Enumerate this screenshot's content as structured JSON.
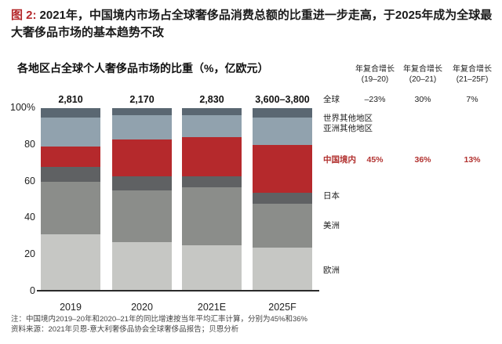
{
  "header": {
    "tag": "图 2:",
    "text": "2021年，中国境内市场占全球奢侈品消费总额的比重进一步走高，于2025年成为全球最大奢侈品市场的基本趋势不改"
  },
  "chart_title": "各地区占全球个人奢侈品市场的比重（%，亿欧元）",
  "chart_data": {
    "type": "stacked-bar",
    "title": "各地区占全球个人奢侈品市场的比重（%，亿欧元）",
    "unit": "%",
    "ylim": [
      0,
      100
    ],
    "grid": false,
    "legend_position": "right",
    "categories": [
      "2019",
      "2020",
      "2021E",
      "2025F"
    ],
    "bar_totals": [
      "2,810",
      "2,170",
      "2,830",
      "3,600–3,800"
    ],
    "yticks": [
      {
        "value": 100,
        "label": "100%"
      },
      {
        "value": 80,
        "label": "80"
      },
      {
        "value": 60,
        "label": "60"
      },
      {
        "value": 40,
        "label": "40"
      },
      {
        "value": 20,
        "label": "20"
      },
      {
        "value": 0,
        "label": "0"
      }
    ],
    "series": [
      {
        "key": "europe",
        "name": "欧洲",
        "color": "#c6c7c4",
        "values": [
          31,
          27,
          25,
          24
        ]
      },
      {
        "key": "americas",
        "name": "美洲",
        "color": "#8b8d8a",
        "values": [
          29,
          28,
          32,
          24
        ]
      },
      {
        "key": "japan",
        "name": "日本",
        "color": "#5f6163",
        "values": [
          8,
          8,
          6,
          6
        ]
      },
      {
        "key": "mainland-china",
        "name": "中国境内",
        "color": "#b5292c",
        "values": [
          11,
          20,
          21,
          26
        ]
      },
      {
        "key": "rest-of-asia",
        "name": "亚洲其他地区",
        "color": "#91a2ae",
        "values": [
          16,
          13,
          12,
          15
        ]
      },
      {
        "key": "rest-of-world",
        "name": "世界其他地区",
        "color": "#5a6772",
        "values": [
          5,
          4,
          4,
          5
        ]
      }
    ]
  },
  "growth_table": {
    "columns": [
      {
        "title": "年复合增长",
        "sub": "(19–20)"
      },
      {
        "title": "年复合增长",
        "sub": "(20–21)"
      },
      {
        "title": "年复合增长",
        "sub": "(21–25F)"
      }
    ],
    "rows": [
      {
        "key": "global",
        "label": "全球",
        "values": [
          "–23%",
          "30%",
          "7%"
        ],
        "highlight": false
      },
      {
        "key": "rest-of-world",
        "label": "世界其他地区",
        "values": [],
        "highlight": false
      },
      {
        "key": "rest-of-asia",
        "label": "亚洲其他地区",
        "values": [],
        "highlight": false
      },
      {
        "key": "mainland-china",
        "label": "中国境内",
        "values": [
          "45%",
          "36%",
          "13%"
        ],
        "highlight": true
      },
      {
        "key": "japan",
        "label": "日本",
        "values": [],
        "highlight": false
      },
      {
        "key": "americas",
        "label": "美洲",
        "values": [],
        "highlight": false
      },
      {
        "key": "europe",
        "label": "欧洲",
        "values": [],
        "highlight": false
      }
    ]
  },
  "notes": {
    "note": "注：中国境内2019–20年和2020–21年的同比增速按当年平均汇率计算，分别为45%和36%",
    "source": "资料来源：2021年贝恩-意大利奢侈品协会全球奢侈品报告；贝恩分析"
  },
  "colors": {
    "accent_red": "#b5292c",
    "text_red": "#b23230",
    "axis": "#2b2b2b",
    "text_dark": "#1b1b1b",
    "note_gray": "#444444"
  }
}
